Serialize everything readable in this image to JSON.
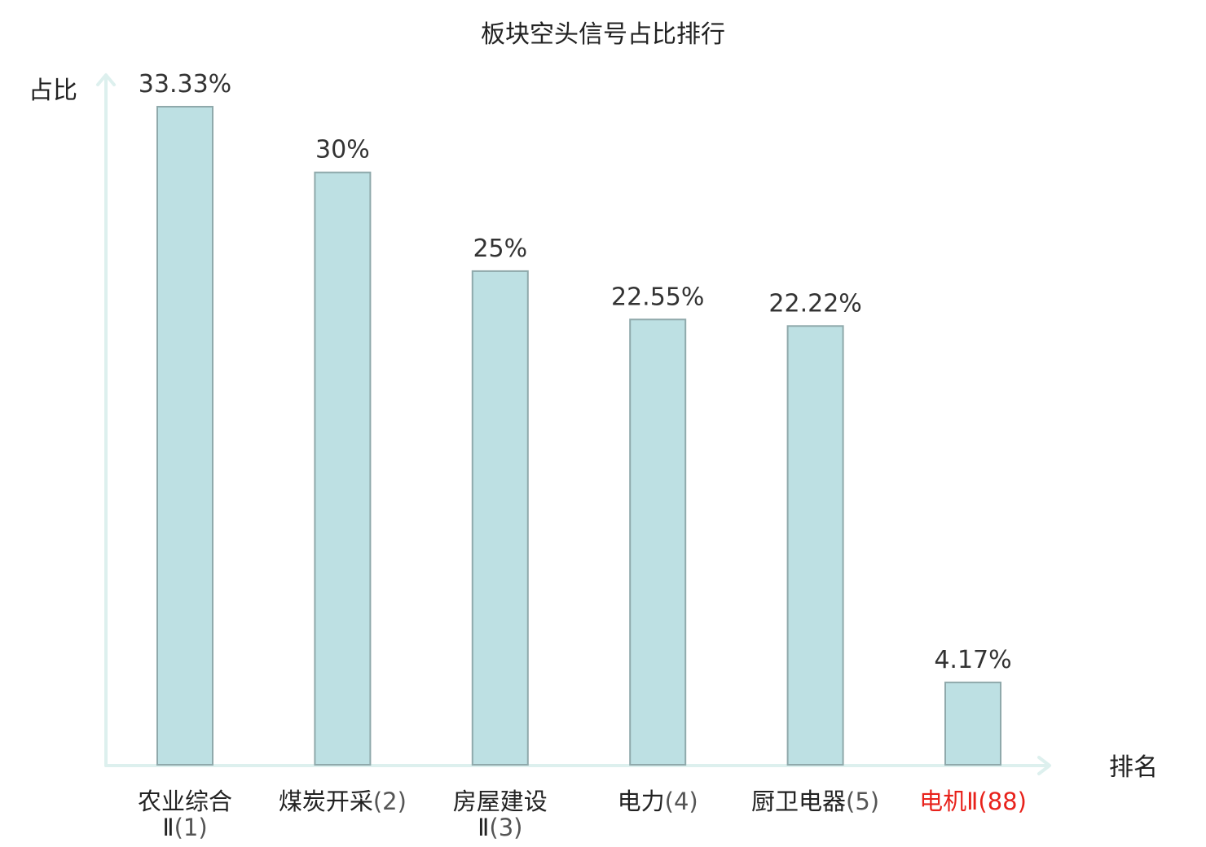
{
  "chart_data": {
    "type": "bar",
    "title": "板块空头信号占比排行",
    "ylabel": "占比",
    "xlabel": "排名",
    "unit": "%",
    "ylim": [
      0,
      36
    ],
    "grid": false,
    "legend": "none",
    "categories": [
      {
        "name": "农业综合",
        "line2": "Ⅱ",
        "rank": "(1)",
        "value": 33.33,
        "value_label": "33.33%",
        "highlight": false
      },
      {
        "name": "煤炭开采",
        "line2": "",
        "rank": "(2)",
        "value": 30,
        "value_label": "30%",
        "highlight": false
      },
      {
        "name": "房屋建设",
        "line2": "Ⅱ",
        "rank": "(3)",
        "value": 25,
        "value_label": "25%",
        "highlight": false
      },
      {
        "name": "电力",
        "line2": "",
        "rank": "(4)",
        "value": 22.55,
        "value_label": "22.55%",
        "highlight": false
      },
      {
        "name": "厨卫电器",
        "line2": "",
        "rank": "(5)",
        "value": 22.22,
        "value_label": "22.22%",
        "highlight": false
      },
      {
        "name": "电机Ⅱ",
        "line2": "",
        "rank": "(88)",
        "value": 4.17,
        "value_label": "4.17%",
        "highlight": true
      }
    ],
    "colors": {
      "bar_fill": "#bde0e3",
      "bar_stroke": "#8fa9ab",
      "axis": "#ddf0ee",
      "highlight_text": "#e8221b",
      "text": "#222222"
    }
  }
}
